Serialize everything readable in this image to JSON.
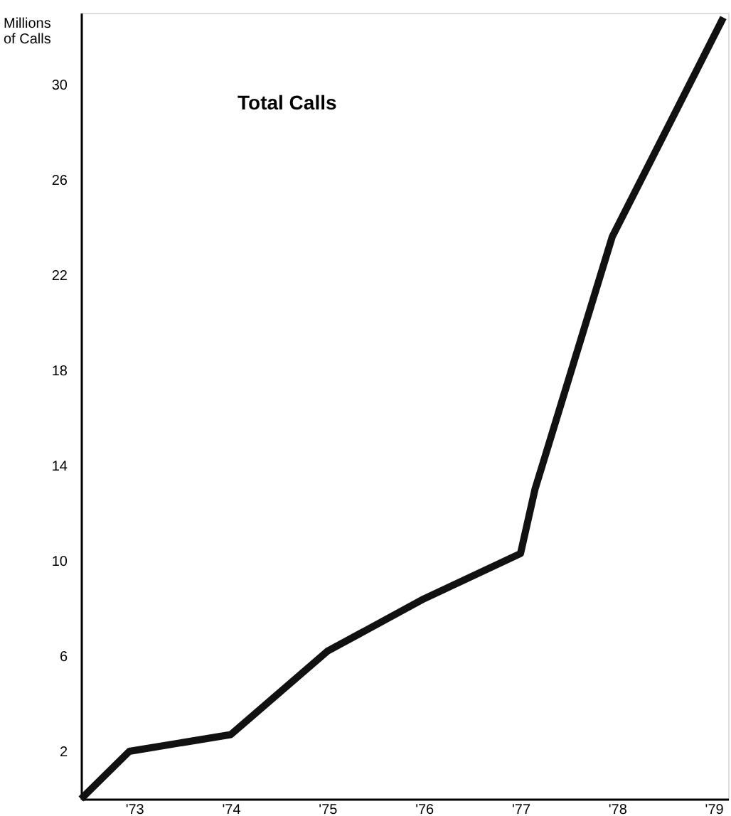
{
  "chart_data": {
    "type": "line",
    "title": "Total Calls",
    "ylabel": "Millions of Calls",
    "x": [
      1972.45,
      1972.95,
      1974,
      1975,
      1976,
      1977,
      1977.15,
      1977.95,
      1979.1
    ],
    "series": [
      {
        "color": "#111111",
        "values": [
          0,
          2.0,
          2.7,
          6.2,
          8.4,
          10.3,
          13,
          23.6,
          32.8
        ]
      }
    ],
    "xlim": [
      1972.45,
      1979.15
    ],
    "xticks": [
      {
        "value": 1973,
        "label": "'73"
      },
      {
        "value": 1974,
        "label": "'74"
      },
      {
        "value": 1975,
        "label": "'75"
      },
      {
        "value": 1976,
        "label": "'76"
      },
      {
        "value": 1977,
        "label": "'77"
      },
      {
        "value": 1978,
        "label": "'78"
      },
      {
        "value": 1979,
        "label": "'79"
      }
    ],
    "ylim": [
      0,
      33
    ],
    "yticks": [
      2,
      6,
      10,
      14,
      18,
      22,
      26,
      30
    ],
    "grid": false,
    "marker": "none",
    "line_style": "solid"
  }
}
